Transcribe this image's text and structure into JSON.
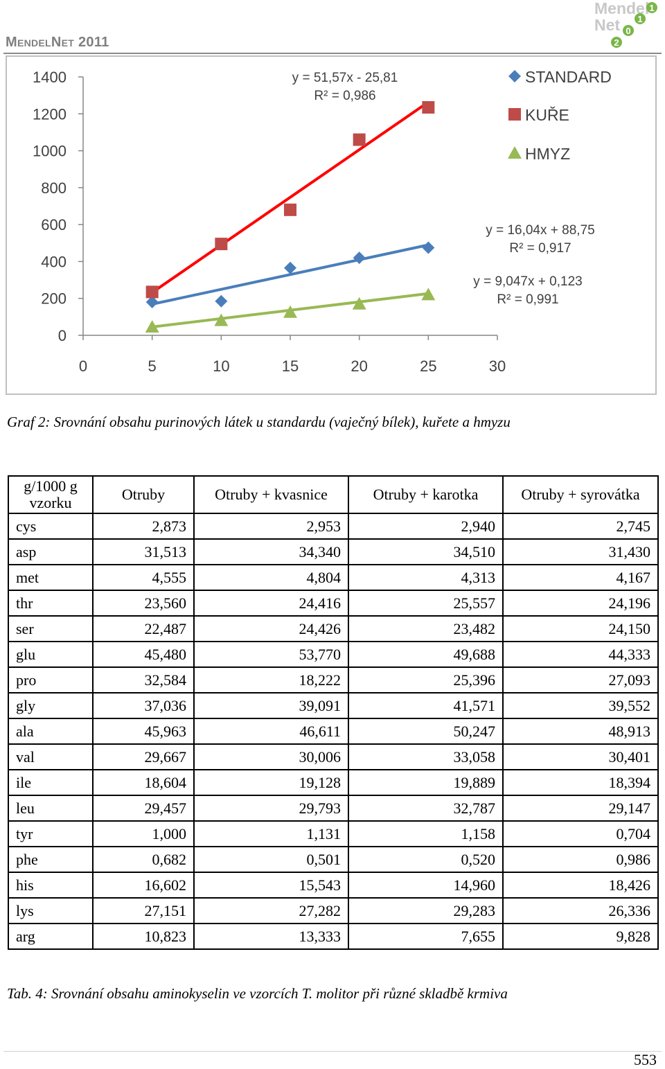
{
  "header": {
    "brand": "MendelNet 2011",
    "logo_text": "MendelNet 2011"
  },
  "figure_caption": "Graf 2: Srovnání obsahu purinových látek u standardu (vaječný bílek), kuřete a hmyzu",
  "chart_data": {
    "type": "scatter",
    "x_ticks": [
      "0",
      "5",
      "10",
      "15",
      "20",
      "25",
      "30"
    ],
    "y_ticks": [
      "0",
      "200",
      "400",
      "600",
      "800",
      "1000",
      "1200",
      "1400"
    ],
    "xlim": [
      0,
      30
    ],
    "ylim": [
      0,
      1400
    ],
    "legend_position": "top-right",
    "series": [
      {
        "name": "STANDARD",
        "marker": "diamond",
        "color": "#4a7ebb",
        "x": [
          5,
          10,
          15,
          20,
          25
        ],
        "y": [
          180,
          185,
          365,
          420,
          475
        ],
        "trend": {
          "slope": 16.04,
          "intercept": 88.75
        },
        "equation": "y = 16,04x + 88,75",
        "r2": "R² = 0,917"
      },
      {
        "name": "KUŘE",
        "marker": "square",
        "color": "#be4b48",
        "x": [
          5,
          10,
          15,
          20,
          25
        ],
        "y": [
          235,
          495,
          680,
          1060,
          1235
        ],
        "trend": {
          "slope": 51.57,
          "intercept": -25.81
        },
        "trend_color": "#ff0000",
        "equation": "y = 51,57x - 25,81",
        "r2": "R² = 0,986"
      },
      {
        "name": "HMYZ",
        "marker": "triangle",
        "color": "#98b954",
        "x": [
          5,
          10,
          15,
          20,
          25
        ],
        "y": [
          45,
          80,
          125,
          170,
          220
        ],
        "trend": {
          "slope": 9.047,
          "intercept": 0.123
        },
        "equation": "y = 9,047x + 0,123",
        "r2": "R² = 0,991"
      }
    ]
  },
  "table": {
    "headers": [
      "g/1000 g vzorku",
      "Otruby",
      "Otruby + kvasnice",
      "Otruby + karotka",
      "Otruby + syrovátka"
    ],
    "rows": [
      [
        "cys",
        "2,873",
        "2,953",
        "2,940",
        "2,745"
      ],
      [
        "asp",
        "31,513",
        "34,340",
        "34,510",
        "31,430"
      ],
      [
        "met",
        "4,555",
        "4,804",
        "4,313",
        "4,167"
      ],
      [
        "thr",
        "23,560",
        "24,416",
        "25,557",
        "24,196"
      ],
      [
        "ser",
        "22,487",
        "24,426",
        "23,482",
        "24,150"
      ],
      [
        "glu",
        "45,480",
        "53,770",
        "49,688",
        "44,333"
      ],
      [
        "pro",
        "32,584",
        "18,222",
        "25,396",
        "27,093"
      ],
      [
        "gly",
        "37,036",
        "39,091",
        "41,571",
        "39,552"
      ],
      [
        "ala",
        "45,963",
        "46,611",
        "50,247",
        "48,913"
      ],
      [
        "val",
        "29,667",
        "30,006",
        "33,058",
        "30,401"
      ],
      [
        "ile",
        "18,604",
        "19,128",
        "19,889",
        "18,394"
      ],
      [
        "leu",
        "29,457",
        "29,793",
        "32,787",
        "29,147"
      ],
      [
        "tyr",
        "1,000",
        "1,131",
        "1,158",
        "0,704"
      ],
      [
        "phe",
        "0,682",
        "0,501",
        "0,520",
        "0,986"
      ],
      [
        "his",
        "16,602",
        "15,543",
        "14,960",
        "18,426"
      ],
      [
        "lys",
        "27,151",
        "27,282",
        "29,283",
        "26,336"
      ],
      [
        "arg",
        "10,823",
        "13,333",
        "7,655",
        "9,828"
      ]
    ]
  },
  "table_caption": "Tab. 4: Srovnání obsahu aminokyselin ve vzorcích T. molitor při různé skladbě krmiva",
  "page_number": "553"
}
